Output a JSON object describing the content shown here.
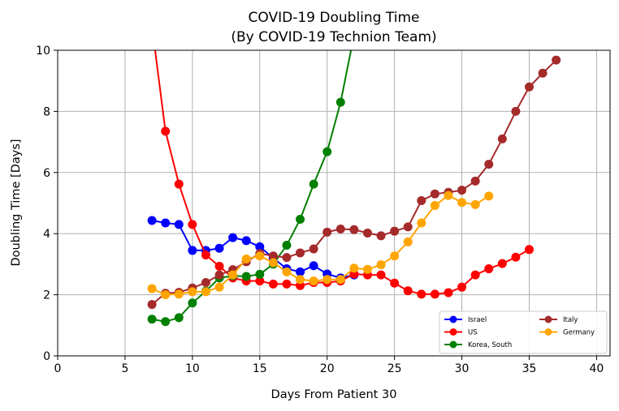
{
  "chart_data": {
    "type": "line",
    "title": "COVID-19 Doubling Time",
    "subtitle": "(By COVID-19 Technion Team)",
    "xlabel": "Days From Patient 30",
    "ylabel": "Doubling Time [Days]",
    "xlim": [
      0,
      41
    ],
    "ylim": [
      0,
      10
    ],
    "xticks": [
      0,
      5,
      10,
      15,
      20,
      25,
      30,
      35,
      40
    ],
    "yticks": [
      0,
      2,
      4,
      6,
      8,
      10
    ],
    "grid": true,
    "legend_position": "bottom-right",
    "series": [
      {
        "name": "Israel",
        "color": "#0000ff",
        "x": [
          7,
          8,
          9,
          10,
          11,
          12,
          13,
          14,
          15,
          16,
          17,
          18,
          19,
          20,
          21,
          22
        ],
        "y": [
          4.43,
          4.35,
          4.3,
          3.45,
          3.45,
          3.52,
          3.87,
          3.77,
          3.57,
          3.2,
          2.85,
          2.75,
          2.95,
          2.68,
          2.55,
          2.65
        ]
      },
      {
        "name": "US",
        "color": "#ff0000",
        "x": [
          7,
          8,
          9,
          10,
          11,
          12,
          13,
          14,
          15,
          16,
          17,
          18,
          19,
          20,
          21,
          22,
          23,
          24,
          25,
          26,
          27,
          28,
          29,
          30,
          31,
          32,
          33,
          34,
          35
        ],
        "y": [
          10.8,
          7.35,
          5.62,
          4.3,
          3.3,
          2.93,
          2.55,
          2.45,
          2.45,
          2.35,
          2.35,
          2.3,
          2.4,
          2.4,
          2.45,
          2.68,
          2.65,
          2.65,
          2.38,
          2.13,
          2.02,
          2.02,
          2.07,
          2.25,
          2.65,
          2.85,
          3.02,
          3.23,
          3.48
        ]
      },
      {
        "name": "Korea, South",
        "color": "#008000",
        "x": [
          7,
          8,
          9,
          10,
          11,
          12,
          13,
          14,
          15,
          16,
          17,
          18,
          19,
          20,
          21,
          22
        ],
        "y": [
          1.2,
          1.12,
          1.25,
          1.73,
          2.12,
          2.55,
          2.62,
          2.6,
          2.67,
          3.0,
          3.62,
          4.47,
          5.62,
          6.68,
          8.3,
          10.5
        ]
      },
      {
        "name": "Italy",
        "color": "#a52a2a",
        "x": [
          7,
          8,
          9,
          10,
          11,
          12,
          13,
          14,
          15,
          16,
          17,
          18,
          19,
          20,
          21,
          22,
          23,
          24,
          25,
          26,
          27,
          28,
          29,
          30,
          31,
          32,
          33,
          34,
          35,
          36,
          37
        ],
        "y": [
          1.68,
          2.05,
          2.08,
          2.22,
          2.4,
          2.65,
          2.82,
          3.08,
          3.35,
          3.27,
          3.22,
          3.37,
          3.5,
          4.05,
          4.15,
          4.13,
          4.02,
          3.93,
          4.08,
          4.22,
          5.08,
          5.3,
          5.35,
          5.42,
          5.72,
          6.27,
          7.1,
          8.0,
          8.8,
          9.25,
          9.68
        ]
      },
      {
        "name": "Germany",
        "color": "#ffa500",
        "x": [
          7,
          8,
          9,
          10,
          11,
          12,
          13,
          14,
          15,
          16,
          17,
          18,
          19,
          20,
          21,
          22,
          23,
          24,
          25,
          26,
          27,
          28,
          29,
          30,
          31,
          32
        ],
        "y": [
          2.2,
          2.0,
          2.02,
          2.1,
          2.1,
          2.25,
          2.65,
          3.17,
          3.27,
          3.05,
          2.75,
          2.5,
          2.45,
          2.5,
          2.5,
          2.87,
          2.83,
          2.98,
          3.27,
          3.73,
          4.35,
          4.92,
          5.25,
          5.02,
          4.95,
          5.23
        ]
      }
    ]
  }
}
